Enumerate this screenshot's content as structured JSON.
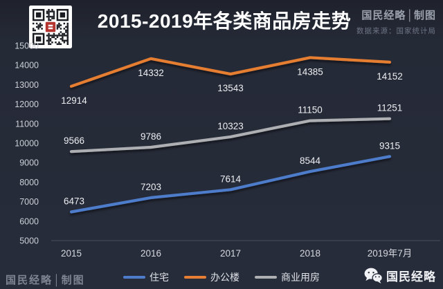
{
  "header": {
    "title": "2015-2019年各类商品房走势",
    "brand": "国民经略│制图",
    "source": "数据来源：国家统计局"
  },
  "footer": {
    "brand": "国民经略│制图",
    "wechat_name": "国民经略"
  },
  "colors": {
    "background": "#252a37",
    "axis_line": "#4a4f5c",
    "tick_label": "#ccd0d7",
    "data_label": "#eceef1",
    "qr_logo_red": "#b5342f"
  },
  "chart_data": {
    "type": "line",
    "title": "2015-2019年各类商品房走势",
    "categories": [
      "2015",
      "2016",
      "2017",
      "2018",
      "2019年7月"
    ],
    "series": [
      {
        "name": "住宅",
        "color": "#4E7CCB",
        "values": [
          6473,
          7203,
          7614,
          8544,
          9315
        ],
        "label_position": "above"
      },
      {
        "name": "办公楼",
        "color": "#E67E33",
        "values": [
          12914,
          14332,
          13543,
          14385,
          14152
        ],
        "label_position": "below"
      },
      {
        "name": "商业用房",
        "color": "#ADAFB2",
        "values": [
          9566,
          9786,
          10323,
          11150,
          11251
        ],
        "label_position": "above"
      }
    ],
    "xlabel": "",
    "ylabel": "",
    "ylim": [
      5000,
      15000
    ],
    "ytick_step": 1000,
    "grid": false,
    "legend_position": "bottom"
  }
}
